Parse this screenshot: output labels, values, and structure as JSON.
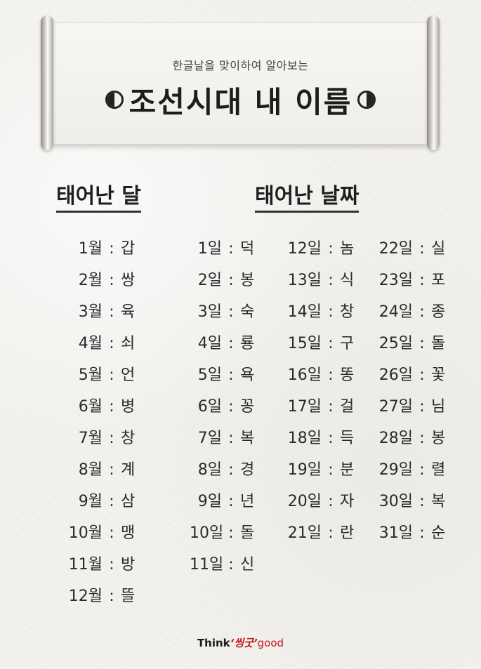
{
  "banner": {
    "subtitle": "한글날을 맞이하여 알아보는",
    "title": "조선시대 내 이름"
  },
  "headings": {
    "month": "태어난 달",
    "day": "태어난 날짜"
  },
  "months": [
    {
      "key": "1월",
      "val": "갑"
    },
    {
      "key": "2월",
      "val": "쌍"
    },
    {
      "key": "3월",
      "val": "육"
    },
    {
      "key": "4월",
      "val": "쇠"
    },
    {
      "key": "5월",
      "val": "언"
    },
    {
      "key": "6월",
      "val": "병"
    },
    {
      "key": "7월",
      "val": "창"
    },
    {
      "key": "8월",
      "val": "계"
    },
    {
      "key": "9월",
      "val": "삼"
    },
    {
      "key": "10월",
      "val": "맹"
    },
    {
      "key": "11월",
      "val": "방"
    },
    {
      "key": "12월",
      "val": "뜰"
    }
  ],
  "days_col1": [
    {
      "key": "1일",
      "val": "덕"
    },
    {
      "key": "2일",
      "val": "봉"
    },
    {
      "key": "3일",
      "val": "숙"
    },
    {
      "key": "4일",
      "val": "룡"
    },
    {
      "key": "5일",
      "val": "욕"
    },
    {
      "key": "6일",
      "val": "꽁"
    },
    {
      "key": "7일",
      "val": "복"
    },
    {
      "key": "8일",
      "val": "경"
    },
    {
      "key": "9일",
      "val": "년"
    },
    {
      "key": "10일",
      "val": "돌"
    },
    {
      "key": "11일",
      "val": "신"
    }
  ],
  "days_col2": [
    {
      "key": "12일",
      "val": "놈"
    },
    {
      "key": "13일",
      "val": "식"
    },
    {
      "key": "14일",
      "val": "창"
    },
    {
      "key": "15일",
      "val": "구"
    },
    {
      "key": "16일",
      "val": "똥"
    },
    {
      "key": "17일",
      "val": "걸"
    },
    {
      "key": "18일",
      "val": "득"
    },
    {
      "key": "19일",
      "val": "분"
    },
    {
      "key": "20일",
      "val": "자"
    },
    {
      "key": "21일",
      "val": "란"
    }
  ],
  "days_col3": [
    {
      "key": "22일",
      "val": "실"
    },
    {
      "key": "23일",
      "val": "포"
    },
    {
      "key": "24일",
      "val": "종"
    },
    {
      "key": "25일",
      "val": "돌"
    },
    {
      "key": "26일",
      "val": "꽃"
    },
    {
      "key": "27일",
      "val": "님"
    },
    {
      "key": "28일",
      "val": "봉"
    },
    {
      "key": "29일",
      "val": "렬"
    },
    {
      "key": "30일",
      "val": "복"
    },
    {
      "key": "31일",
      "val": "순"
    }
  ],
  "separator": ":",
  "logo": {
    "think": "Think",
    "korean": "‘씽굿’",
    "good": "good"
  }
}
